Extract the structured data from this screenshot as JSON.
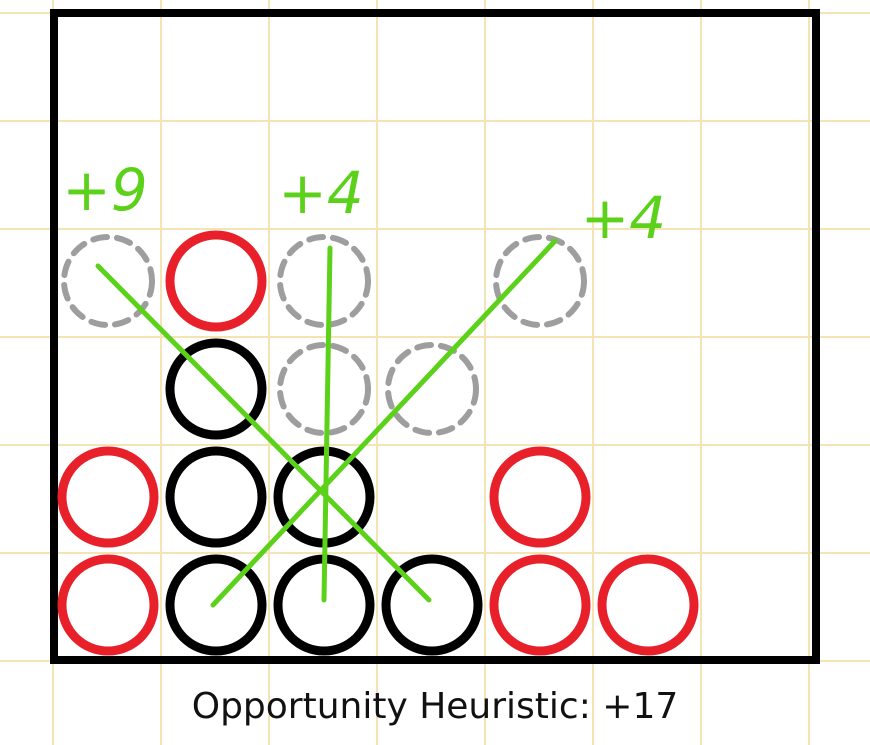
{
  "caption": "Opportunity Heuristic: +17",
  "board": {
    "columns": 7,
    "rows": 6
  },
  "colors": {
    "red": "#e8202a",
    "black": "#000000",
    "ghost": "#9e9e9e",
    "annotation": "#5cd11a",
    "gridline": "#f4e4b4",
    "frame": "#000000"
  },
  "pieces": [
    {
      "col": 0,
      "row": 0,
      "color": "red"
    },
    {
      "col": 0,
      "row": 1,
      "color": "red"
    },
    {
      "col": 1,
      "row": 0,
      "color": "black"
    },
    {
      "col": 1,
      "row": 1,
      "color": "black"
    },
    {
      "col": 1,
      "row": 2,
      "color": "black"
    },
    {
      "col": 1,
      "row": 3,
      "color": "red"
    },
    {
      "col": 2,
      "row": 0,
      "color": "black"
    },
    {
      "col": 2,
      "row": 1,
      "color": "black"
    },
    {
      "col": 3,
      "row": 0,
      "color": "black"
    },
    {
      "col": 4,
      "row": 0,
      "color": "red"
    },
    {
      "col": 4,
      "row": 1,
      "color": "red"
    },
    {
      "col": 5,
      "row": 0,
      "color": "red"
    }
  ],
  "ghost_pieces": [
    {
      "col": 0,
      "row": 3
    },
    {
      "col": 2,
      "row": 2
    },
    {
      "col": 2,
      "row": 3
    },
    {
      "col": 3,
      "row": 2
    },
    {
      "col": 4,
      "row": 3
    }
  ],
  "opportunity_lines": [
    {
      "from": {
        "col": 0,
        "row": 3
      },
      "to": {
        "col": 3,
        "row": 0
      }
    },
    {
      "from": {
        "col": 2,
        "row": 3
      },
      "to": {
        "col": 2,
        "row": 0
      }
    },
    {
      "from": {
        "col": 1,
        "row": 0
      },
      "to": {
        "col": 4,
        "row": 3
      }
    }
  ],
  "annotations": [
    {
      "text": "+9",
      "col": 0
    },
    {
      "text": "+4",
      "col": 2
    },
    {
      "text": "+4",
      "col": 4.8
    }
  ]
}
